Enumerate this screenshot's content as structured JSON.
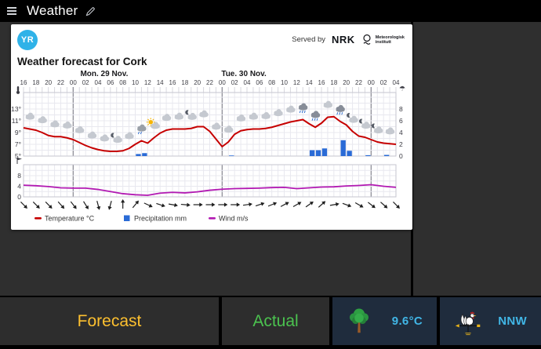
{
  "titlebar": {
    "title": "Weather"
  },
  "card": {
    "logo_text": "YR",
    "served_by": "Served by",
    "nrk_logo_text": "NRK",
    "met_logo_line1": "Meteorologisk",
    "met_logo_line2": "institutt",
    "title": "Weather forecast for Cork"
  },
  "chart_data": {
    "type": "line",
    "title": "Weather forecast for Cork",
    "x_axis": {
      "start_label_hour": 16,
      "hours_total": 60,
      "tick_step_hours": 2,
      "day_boundaries_hours": [
        8,
        32,
        56
      ],
      "day_labels": [
        {
          "label": "Mon. 29 Nov.",
          "center_hour": 13
        },
        {
          "label": "Tue. 30 Nov.",
          "center_hour": 35.5
        }
      ]
    },
    "axes": {
      "temperature_c": {
        "ticks": [
          5,
          7,
          9,
          11,
          13
        ],
        "suffix": "°"
      },
      "precipitation_mm": {
        "ticks": [
          0,
          2,
          4,
          6,
          8
        ]
      },
      "wind_ms": {
        "ticks": [
          0,
          4,
          8
        ]
      }
    },
    "series": [
      {
        "name": "Temperature °C",
        "type": "line",
        "color": "#c60000",
        "step_hours": 1,
        "values": [
          9.8,
          9.6,
          9.4,
          9.0,
          8.5,
          8.3,
          8.3,
          8.1,
          7.8,
          7.3,
          6.8,
          6.4,
          6.1,
          5.9,
          5.8,
          5.8,
          5.9,
          6.3,
          7.0,
          7.6,
          7.2,
          8.1,
          8.9,
          9.4,
          9.6,
          9.6,
          9.6,
          9.7,
          10.0,
          10.0,
          9.2,
          7.9,
          6.6,
          7.4,
          8.7,
          9.3,
          9.5,
          9.6,
          9.6,
          9.7,
          9.9,
          10.2,
          10.5,
          10.8,
          11.0,
          11.2,
          10.5,
          9.9,
          10.6,
          11.6,
          11.7,
          10.9,
          10.3,
          9.2,
          8.4,
          8.2,
          7.8,
          7.4,
          7.2,
          7.1,
          7.0
        ]
      },
      {
        "name": "Precipitation mm",
        "type": "bar",
        "color": "#2a6bd6",
        "points": [
          {
            "hour": 18,
            "mm": 0.35
          },
          {
            "hour": 19,
            "mm": 0.5
          },
          {
            "hour": 33,
            "mm": 0.1
          },
          {
            "hour": 46,
            "mm": 1.0
          },
          {
            "hour": 47,
            "mm": 1.0
          },
          {
            "hour": 48,
            "mm": 1.3
          },
          {
            "hour": 51,
            "mm": 2.7
          },
          {
            "hour": 52,
            "mm": 0.9
          },
          {
            "hour": 55,
            "mm": 0.15
          },
          {
            "hour": 58,
            "mm": 0.2
          }
        ]
      },
      {
        "name": "Wind m/s",
        "type": "line",
        "color": "#b219b2",
        "step_hours": 2,
        "values": [
          4.4,
          4.2,
          3.9,
          3.4,
          3.3,
          3.3,
          2.8,
          2.0,
          1.2,
          0.8,
          0.6,
          1.4,
          1.7,
          1.5,
          1.9,
          2.5,
          2.9,
          3.1,
          3.2,
          3.3,
          3.5,
          3.6,
          3.1,
          3.4,
          3.7,
          3.8,
          4.1,
          4.3,
          4.6,
          4.0,
          3.6
        ]
      }
    ],
    "wind_arrows_deg": [
      45,
      45,
      45,
      48,
      52,
      58,
      75,
      105,
      -90,
      -50,
      25,
      18,
      10,
      5,
      0,
      0,
      0,
      0,
      -8,
      -18,
      -22,
      -28,
      -30,
      -35,
      -42,
      -10,
      20,
      30,
      38,
      42,
      45
    ],
    "weather_symbols": [
      {
        "hour": 1,
        "type": "cloud"
      },
      {
        "hour": 3,
        "type": "cloud"
      },
      {
        "hour": 5,
        "type": "cloud"
      },
      {
        "hour": 7,
        "type": "cloud"
      },
      {
        "hour": 9,
        "type": "cloud"
      },
      {
        "hour": 11,
        "type": "cloud"
      },
      {
        "hour": 13,
        "type": "cloud"
      },
      {
        "hour": 15,
        "type": "moon-cloud"
      },
      {
        "hour": 17,
        "type": "cloud"
      },
      {
        "hour": 19,
        "type": "rain"
      },
      {
        "hour": 21,
        "type": "sun-cloud"
      },
      {
        "hour": 23,
        "type": "cloud"
      },
      {
        "hour": 25,
        "type": "cloud"
      },
      {
        "hour": 27,
        "type": "moon-cloud"
      },
      {
        "hour": 29,
        "type": "cloud"
      },
      {
        "hour": 31,
        "type": "cloud"
      },
      {
        "hour": 33,
        "type": "cloud"
      },
      {
        "hour": 35,
        "type": "cloud"
      },
      {
        "hour": 37,
        "type": "cloud"
      },
      {
        "hour": 39,
        "type": "cloud"
      },
      {
        "hour": 41,
        "type": "cloud"
      },
      {
        "hour": 43,
        "type": "cloud"
      },
      {
        "hour": 45,
        "type": "rain-dark"
      },
      {
        "hour": 47,
        "type": "rain-dark"
      },
      {
        "hour": 49,
        "type": "cloud"
      },
      {
        "hour": 51,
        "type": "rain-dark"
      },
      {
        "hour": 53,
        "type": "moon-cloud"
      },
      {
        "hour": 55,
        "type": "moon-cloud"
      },
      {
        "hour": 57,
        "type": "moon-cloud"
      },
      {
        "hour": 59,
        "type": "cloud"
      }
    ],
    "legend": [
      "Temperature °C",
      "Precipitation mm",
      "Wind m/s"
    ]
  },
  "panels": [
    {
      "label": "Forecast",
      "color": "#fdc02f"
    },
    {
      "label": "Actual",
      "color": "#4bc24f"
    },
    {
      "value": "9.6",
      "unit": "°C",
      "color": "#41b6e6"
    },
    {
      "value": "NNW",
      "color": "#41b6e6"
    }
  ]
}
